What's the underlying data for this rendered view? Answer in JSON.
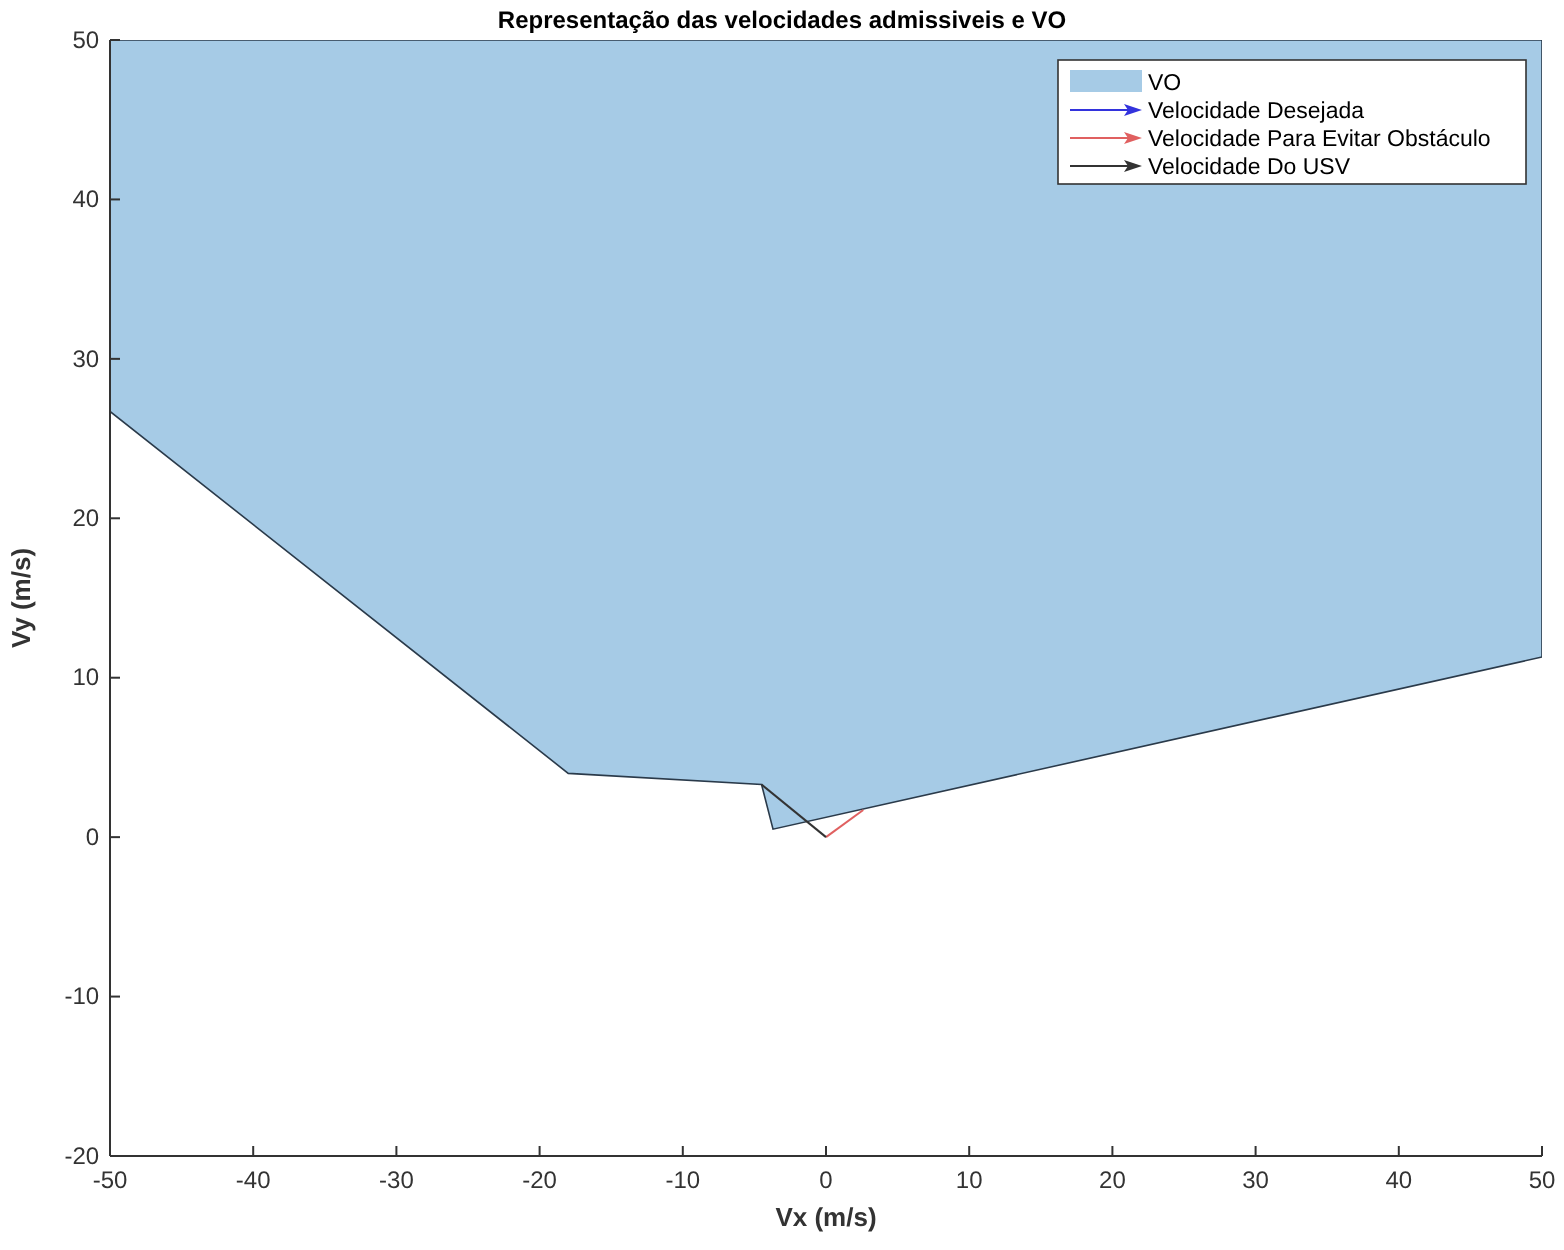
{
  "chart_data": {
    "type": "line",
    "title": "Representação das velocidades admissiveis e VO",
    "xlabel": "Vx (m/s)",
    "ylabel": "Vy (m/s)",
    "xlim": [
      -50,
      50
    ],
    "xticks": [
      -50,
      -40,
      -30,
      -20,
      -10,
      0,
      10,
      20,
      30,
      40,
      50
    ],
    "ylim": [
      -20,
      50
    ],
    "yticks": [
      -20,
      -10,
      0,
      10,
      20,
      30,
      40,
      50
    ],
    "grid": false,
    "legend": "top right",
    "series": [
      {
        "name": "VO",
        "type": "area",
        "color": "#a6cbe6",
        "x": [
          -50,
          -50,
          -18,
          -4.5,
          -3.7,
          50,
          50
        ],
        "values": [
          50,
          26.7,
          4,
          3.3,
          0.5,
          11.3,
          50
        ]
      },
      {
        "name": "Velocidade Desejada",
        "color": "#3333dd",
        "values": [
          null
        ]
      },
      {
        "name": "Velocidade Para Evitar Obstáculo",
        "color": "#e06060",
        "x": [
          0,
          2.6
        ],
        "values": [
          0,
          1.7
        ]
      },
      {
        "name": "Velocidade Do USV",
        "color": "#333333",
        "x": [
          0,
          -4.5
        ],
        "values": [
          0,
          3.3
        ]
      }
    ]
  }
}
